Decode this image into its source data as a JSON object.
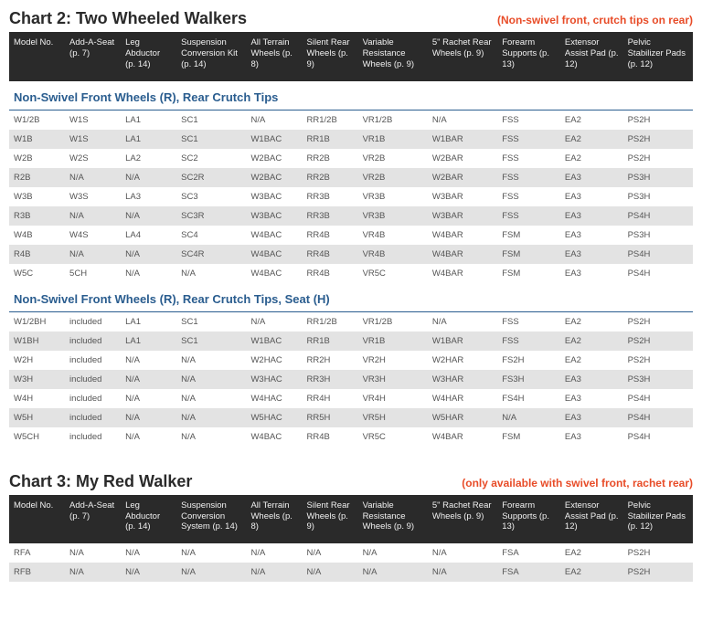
{
  "colors": {
    "header_bg": "#2a2a2a",
    "header_text": "#f0f0f0",
    "title_text": "#2a2a2a",
    "note_text": "#e84c28",
    "section_text": "#2a5d8f",
    "row_even": "#ffffff",
    "row_odd": "#e3e3e3",
    "cell_text": "#555555"
  },
  "columns": [
    "Model No.",
    "Add-A-Seat (p. 7)",
    "Leg Abductor (p. 14)",
    "Suspension Conversion Kit (p. 14)",
    "All Terrain Wheels (p. 8)",
    "Silent Rear Wheels (p. 9)",
    "Variable Resistance Wheels (p. 9)",
    "5\" Rachet Rear Wheels (p. 9)",
    "Forearm Supports (p. 13)",
    "Extensor Assist Pad (p. 12)",
    "Pelvic Stabilizer Pads (p. 12)"
  ],
  "columns_chart3": [
    "Model No.",
    "Add-A-Seat (p. 7)",
    "Leg Abductor (p. 14)",
    "Suspension Conversion System (p. 14)",
    "All Terrain Wheels (p. 8)",
    "Silent Rear Wheels (p. 9)",
    "Variable Resistance Wheels (p. 9)",
    "5\" Rachet Rear Wheels (p. 9)",
    "Forearm Supports (p. 13)",
    "Extensor Assist Pad (p. 12)",
    "Pelvic Stabilizer Pads (p. 12)"
  ],
  "chart2": {
    "title": "Chart 2: Two Wheeled Walkers",
    "note": "(Non-swivel front, crutch tips on rear)",
    "sections": [
      {
        "heading": "Non-Swivel Front Wheels (R), Rear Crutch Tips",
        "rows": [
          [
            "W1/2B",
            "W1S",
            "LA1",
            "SC1",
            "N/A",
            "RR1/2B",
            "VR1/2B",
            "N/A",
            "FSS",
            "EA2",
            "PS2H"
          ],
          [
            "W1B",
            "W1S",
            "LA1",
            "SC1",
            "W1BAC",
            "RR1B",
            "VR1B",
            "W1BAR",
            "FSS",
            "EA2",
            "PS2H"
          ],
          [
            "W2B",
            "W2S",
            "LA2",
            "SC2",
            "W2BAC",
            "RR2B",
            "VR2B",
            "W2BAR",
            "FSS",
            "EA2",
            "PS2H"
          ],
          [
            "R2B",
            "N/A",
            "N/A",
            "SC2R",
            "W2BAC",
            "RR2B",
            "VR2B",
            "W2BAR",
            "FSS",
            "EA3",
            "PS3H"
          ],
          [
            "W3B",
            "W3S",
            "LA3",
            "SC3",
            "W3BAC",
            "RR3B",
            "VR3B",
            "W3BAR",
            "FSS",
            "EA3",
            "PS3H"
          ],
          [
            "R3B",
            "N/A",
            "N/A",
            "SC3R",
            "W3BAC",
            "RR3B",
            "VR3B",
            "W3BAR",
            "FSS",
            "EA3",
            "PS4H"
          ],
          [
            "W4B",
            "W4S",
            "LA4",
            "SC4",
            "W4BAC",
            "RR4B",
            "VR4B",
            "W4BAR",
            "FSM",
            "EA3",
            "PS3H"
          ],
          [
            "R4B",
            "N/A",
            "N/A",
            "SC4R",
            "W4BAC",
            "RR4B",
            "VR4B",
            "W4BAR",
            "FSM",
            "EA3",
            "PS4H"
          ],
          [
            "W5C",
            "5CH",
            "N/A",
            "N/A",
            "W4BAC",
            "RR4B",
            "VR5C",
            "W4BAR",
            "FSM",
            "EA3",
            "PS4H"
          ]
        ]
      },
      {
        "heading": "Non-Swivel Front Wheels (R), Rear Crutch Tips, Seat (H)",
        "rows": [
          [
            "W1/2BH",
            "included",
            "LA1",
            "SC1",
            "N/A",
            "RR1/2B",
            "VR1/2B",
            "N/A",
            "FSS",
            "EA2",
            "PS2H"
          ],
          [
            "W1BH",
            "included",
            "LA1",
            "SC1",
            "W1BAC",
            "RR1B",
            "VR1B",
            "W1BAR",
            "FSS",
            "EA2",
            "PS2H"
          ],
          [
            "W2H",
            "included",
            "N/A",
            "N/A",
            "W2HAC",
            "RR2H",
            "VR2H",
            "W2HAR",
            "FS2H",
            "EA2",
            "PS2H"
          ],
          [
            "W3H",
            "included",
            "N/A",
            "N/A",
            "W3HAC",
            "RR3H",
            "VR3H",
            "W3HAR",
            "FS3H",
            "EA3",
            "PS3H"
          ],
          [
            "W4H",
            "included",
            "N/A",
            "N/A",
            "W4HAC",
            "RR4H",
            "VR4H",
            "W4HAR",
            "FS4H",
            "EA3",
            "PS4H"
          ],
          [
            "W5H",
            "included",
            "N/A",
            "N/A",
            "W5HAC",
            "RR5H",
            "VR5H",
            "W5HAR",
            "N/A",
            "EA3",
            "PS4H"
          ],
          [
            "W5CH",
            "included",
            "N/A",
            "N/A",
            "W4BAC",
            "RR4B",
            "VR5C",
            "W4BAR",
            "FSM",
            "EA3",
            "PS4H"
          ]
        ]
      }
    ]
  },
  "chart3": {
    "title": "Chart 3: My Red Walker",
    "note": "(only available with swivel front, rachet rear)",
    "rows": [
      [
        "RFA",
        "N/A",
        "N/A",
        "N/A",
        "N/A",
        "N/A",
        "N/A",
        "N/A",
        "FSA",
        "EA2",
        "PS2H"
      ],
      [
        "RFB",
        "N/A",
        "N/A",
        "N/A",
        "N/A",
        "N/A",
        "N/A",
        "N/A",
        "FSA",
        "EA2",
        "PS2H"
      ]
    ]
  }
}
